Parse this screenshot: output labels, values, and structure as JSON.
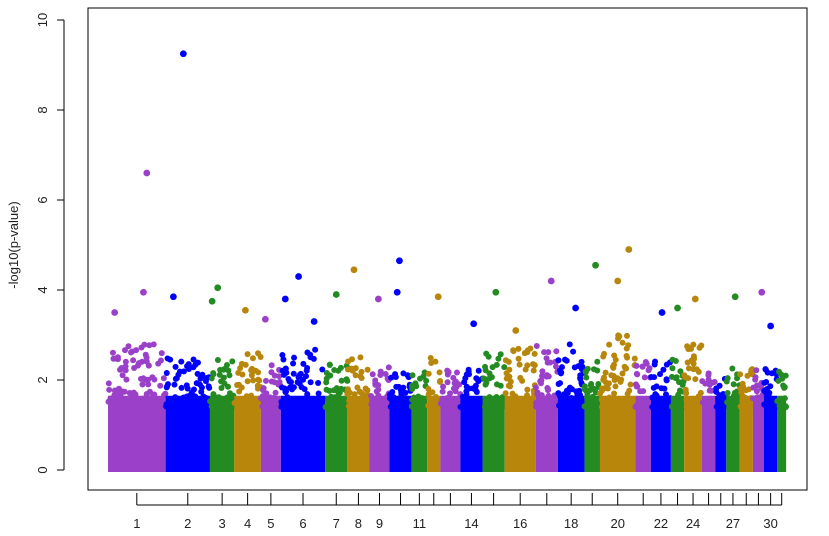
{
  "chart_data": {
    "type": "scatter",
    "title": "",
    "xlabel": "",
    "ylabel": "-log10(p-value)",
    "ylim": [
      0,
      10
    ],
    "yticks": [
      0,
      2,
      4,
      6,
      8,
      10
    ],
    "xlim": [
      0,
      31
    ],
    "grid": false,
    "legend": "none",
    "palette": [
      "#9a40c9",
      "#0000ff",
      "#238b22",
      "#b8860b"
    ],
    "chromosomes": [
      {
        "chr": 1,
        "start": 0.0,
        "end": 2.6,
        "tick_label": "1"
      },
      {
        "chr": 2,
        "start": 2.6,
        "end": 4.6,
        "tick_label": "2"
      },
      {
        "chr": 3,
        "start": 4.6,
        "end": 5.7,
        "tick_label": "3"
      },
      {
        "chr": 4,
        "start": 5.7,
        "end": 6.9,
        "tick_label": "4"
      },
      {
        "chr": 5,
        "start": 6.9,
        "end": 7.8,
        "tick_label": "5"
      },
      {
        "chr": 6,
        "start": 7.8,
        "end": 9.8,
        "tick_label": "6"
      },
      {
        "chr": 7,
        "start": 9.8,
        "end": 10.8,
        "tick_label": "7"
      },
      {
        "chr": 8,
        "start": 10.8,
        "end": 11.8,
        "tick_label": "8"
      },
      {
        "chr": 9,
        "start": 11.8,
        "end": 12.7,
        "tick_label": "9"
      },
      {
        "chr": 10,
        "start": 12.7,
        "end": 13.7,
        "tick_label": ""
      },
      {
        "chr": 11,
        "start": 13.7,
        "end": 14.4,
        "tick_label": "11"
      },
      {
        "chr": 12,
        "start": 14.4,
        "end": 15.0,
        "tick_label": ""
      },
      {
        "chr": 13,
        "start": 15.0,
        "end": 15.9,
        "tick_label": ""
      },
      {
        "chr": 14,
        "start": 15.9,
        "end": 16.9,
        "tick_label": "14"
      },
      {
        "chr": 15,
        "start": 16.9,
        "end": 17.9,
        "tick_label": ""
      },
      {
        "chr": 16,
        "start": 17.9,
        "end": 19.3,
        "tick_label": "16"
      },
      {
        "chr": 17,
        "start": 19.3,
        "end": 20.3,
        "tick_label": ""
      },
      {
        "chr": 18,
        "start": 20.3,
        "end": 21.5,
        "tick_label": "18"
      },
      {
        "chr": 19,
        "start": 21.5,
        "end": 22.2,
        "tick_label": ""
      },
      {
        "chr": 20,
        "start": 22.2,
        "end": 23.8,
        "tick_label": "20"
      },
      {
        "chr": 21,
        "start": 23.8,
        "end": 24.5,
        "tick_label": ""
      },
      {
        "chr": 22,
        "start": 24.5,
        "end": 25.4,
        "tick_label": "22"
      },
      {
        "chr": 23,
        "start": 25.4,
        "end": 26.0,
        "tick_label": ""
      },
      {
        "chr": 24,
        "start": 26.0,
        "end": 26.8,
        "tick_label": "24"
      },
      {
        "chr": 25,
        "start": 26.8,
        "end": 27.4,
        "tick_label": ""
      },
      {
        "chr": 26,
        "start": 27.4,
        "end": 27.9,
        "tick_label": ""
      },
      {
        "chr": 27,
        "start": 27.9,
        "end": 28.5,
        "tick_label": "27"
      },
      {
        "chr": 28,
        "start": 28.5,
        "end": 29.1,
        "tick_label": ""
      },
      {
        "chr": 29,
        "start": 29.1,
        "end": 29.6,
        "tick_label": ""
      },
      {
        "chr": 30,
        "start": 29.6,
        "end": 30.2,
        "tick_label": "30"
      },
      {
        "chr": 31,
        "start": 30.2,
        "end": 30.6,
        "tick_label": ""
      }
    ],
    "top_hits": [
      {
        "chr": 1,
        "x": 1.75,
        "y": 6.6
      },
      {
        "chr": 1,
        "x": 1.6,
        "y": 3.95
      },
      {
        "chr": 1,
        "x": 0.3,
        "y": 3.5
      },
      {
        "chr": 2,
        "x": 3.4,
        "y": 9.25
      },
      {
        "chr": 2,
        "x": 2.95,
        "y": 3.85
      },
      {
        "chr": 3,
        "x": 4.95,
        "y": 4.05
      },
      {
        "chr": 3,
        "x": 4.7,
        "y": 3.75
      },
      {
        "chr": 4,
        "x": 6.2,
        "y": 3.55
      },
      {
        "chr": 5,
        "x": 7.1,
        "y": 3.35
      },
      {
        "chr": 6,
        "x": 8.6,
        "y": 4.3
      },
      {
        "chr": 6,
        "x": 8.0,
        "y": 3.8
      },
      {
        "chr": 6,
        "x": 9.3,
        "y": 3.3
      },
      {
        "chr": 7,
        "x": 10.3,
        "y": 3.9
      },
      {
        "chr": 8,
        "x": 11.1,
        "y": 4.45
      },
      {
        "chr": 9,
        "x": 12.2,
        "y": 3.8
      },
      {
        "chr": 10,
        "x": 13.15,
        "y": 4.65
      },
      {
        "chr": 10,
        "x": 13.05,
        "y": 3.95
      },
      {
        "chr": 12,
        "x": 14.9,
        "y": 3.85
      },
      {
        "chr": 14,
        "x": 16.5,
        "y": 3.25
      },
      {
        "chr": 15,
        "x": 17.5,
        "y": 3.95
      },
      {
        "chr": 16,
        "x": 18.4,
        "y": 3.1
      },
      {
        "chr": 17,
        "x": 20.0,
        "y": 4.2
      },
      {
        "chr": 18,
        "x": 21.1,
        "y": 3.6
      },
      {
        "chr": 19,
        "x": 22.0,
        "y": 4.55
      },
      {
        "chr": 20,
        "x": 23.5,
        "y": 4.9
      },
      {
        "chr": 20,
        "x": 23.0,
        "y": 4.2
      },
      {
        "chr": 22,
        "x": 25.0,
        "y": 3.5
      },
      {
        "chr": 23,
        "x": 25.7,
        "y": 3.6
      },
      {
        "chr": 24,
        "x": 26.5,
        "y": 3.8
      },
      {
        "chr": 27,
        "x": 28.3,
        "y": 3.85
      },
      {
        "chr": 29,
        "x": 29.5,
        "y": 3.95
      },
      {
        "chr": 30,
        "x": 29.9,
        "y": 3.2
      }
    ],
    "background_note_max_y": [
      2.8,
      2.5,
      2.5,
      2.6,
      2.4,
      2.8,
      2.4,
      2.6,
      2.4,
      2.2,
      2.2,
      2.5,
      2.4,
      2.4,
      2.6,
      2.8,
      2.8,
      2.8,
      2.5,
      3.0,
      2.4,
      2.5,
      2.5,
      2.8,
      2.2,
      2.2,
      2.3,
      2.3,
      2.3,
      2.4,
      2.2
    ]
  }
}
